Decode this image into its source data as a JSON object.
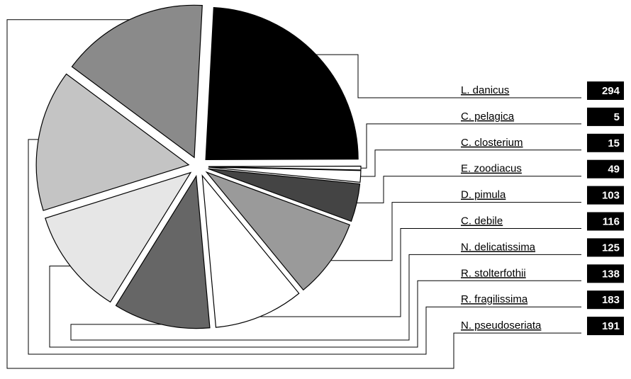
{
  "chart_data": {
    "type": "pie",
    "categories": [
      "L. danicus",
      "C. pelagica",
      "C. closterium",
      "E. zoodiacus",
      "D. pimula",
      "C. debile",
      "N. delicatissima",
      "R. stolterfothii",
      "R. fragilissima",
      "N. pseudoseriata"
    ],
    "values": [
      294,
      5,
      15,
      49,
      103,
      116,
      125,
      138,
      183,
      191
    ],
    "colors": [
      "#000000",
      "#ffffff",
      "#ffffff",
      "#444444",
      "#9a9a9a",
      "#ffffff",
      "#666666",
      "#e6e6e6",
      "#c4c4c4",
      "#8a8a8a"
    ]
  }
}
